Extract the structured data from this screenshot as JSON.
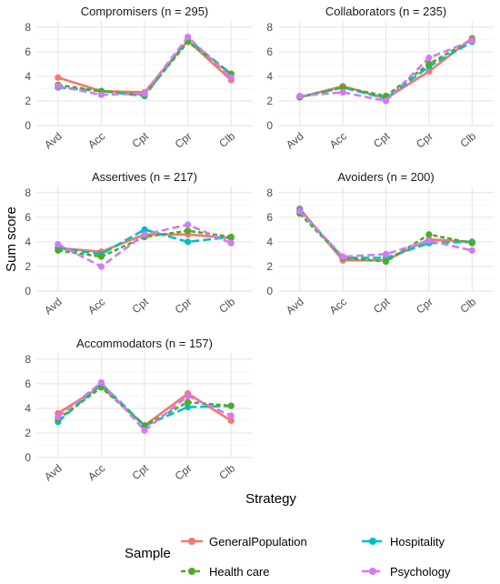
{
  "chart_data": {
    "type": "line",
    "xlabel": "Strategy",
    "ylabel": "Sum score",
    "categories": [
      "Avd",
      "Acc",
      "Cpt",
      "Cpr",
      "Clb"
    ],
    "y_ticks": [
      "0",
      "2",
      "4",
      "6",
      "8"
    ],
    "ylim": [
      0,
      8.5
    ],
    "grid": true,
    "legend": {
      "title": "Sample",
      "position": "bottom",
      "entries": [
        "GeneralPopulation",
        "Hospitality",
        "Health care",
        "Psychology"
      ]
    },
    "colors": {
      "GeneralPopulation": "#F8766D",
      "Hospitality": "#00BFC4",
      "Health care": "#4DAC26",
      "Psychology": "#D17BF5"
    },
    "panels": [
      {
        "title": "Compromisers (n = 295)",
        "series": [
          {
            "name": "GeneralPopulation",
            "values": [
              3.9,
              2.8,
              2.7,
              6.9,
              3.7
            ]
          },
          {
            "name": "Hospitality",
            "values": [
              3.1,
              2.8,
              2.4,
              7.0,
              4.2
            ]
          },
          {
            "name": "Health care",
            "values": [
              3.3,
              2.8,
              2.5,
              6.8,
              4.2
            ]
          },
          {
            "name": "Psychology",
            "values": [
              3.2,
              2.5,
              2.6,
              7.2,
              3.9
            ]
          }
        ]
      },
      {
        "title": "Collaborators (n = 235)",
        "series": [
          {
            "name": "GeneralPopulation",
            "values": [
              2.3,
              3.2,
              2.2,
              4.4,
              7.1
            ]
          },
          {
            "name": "Hospitality",
            "values": [
              2.3,
              3.1,
              2.2,
              4.8,
              6.8
            ]
          },
          {
            "name": "Health care",
            "values": [
              2.3,
              3.1,
              2.4,
              5.0,
              7.0
            ]
          },
          {
            "name": "Psychology",
            "values": [
              2.4,
              2.7,
              2.0,
              5.5,
              6.9
            ]
          }
        ]
      },
      {
        "title": "Assertives (n = 217)",
        "series": [
          {
            "name": "GeneralPopulation",
            "values": [
              3.5,
              3.2,
              4.6,
              4.6,
              4.3
            ]
          },
          {
            "name": "Hospitality",
            "values": [
              3.5,
              3.0,
              5.0,
              4.0,
              4.4
            ]
          },
          {
            "name": "Health care",
            "values": [
              3.3,
              2.8,
              4.4,
              4.9,
              4.4
            ]
          },
          {
            "name": "Psychology",
            "values": [
              3.8,
              2.0,
              4.6,
              5.4,
              3.9
            ]
          }
        ]
      },
      {
        "title": "Avoiders (n = 200)",
        "series": [
          {
            "name": "GeneralPopulation",
            "values": [
              6.7,
              2.5,
              2.5,
              4.2,
              4.0
            ]
          },
          {
            "name": "Hospitality",
            "values": [
              6.6,
              2.7,
              2.7,
              3.9,
              4.0
            ]
          },
          {
            "name": "Health care",
            "values": [
              6.3,
              2.7,
              2.4,
              4.6,
              3.9
            ]
          },
          {
            "name": "Psychology",
            "values": [
              6.5,
              2.8,
              3.0,
              4.1,
              3.3
            ]
          }
        ]
      },
      {
        "title": "Accommodators (n = 157)",
        "series": [
          {
            "name": "GeneralPopulation",
            "values": [
              3.6,
              5.8,
              2.6,
              5.2,
              3.0
            ]
          },
          {
            "name": "Hospitality",
            "values": [
              2.9,
              6.0,
              2.6,
              4.1,
              4.2
            ]
          },
          {
            "name": "Health care",
            "values": [
              3.1,
              5.7,
              2.6,
              4.5,
              4.2
            ]
          },
          {
            "name": "Psychology",
            "values": [
              3.3,
              6.1,
              2.2,
              5.0,
              3.4
            ]
          }
        ]
      }
    ]
  }
}
